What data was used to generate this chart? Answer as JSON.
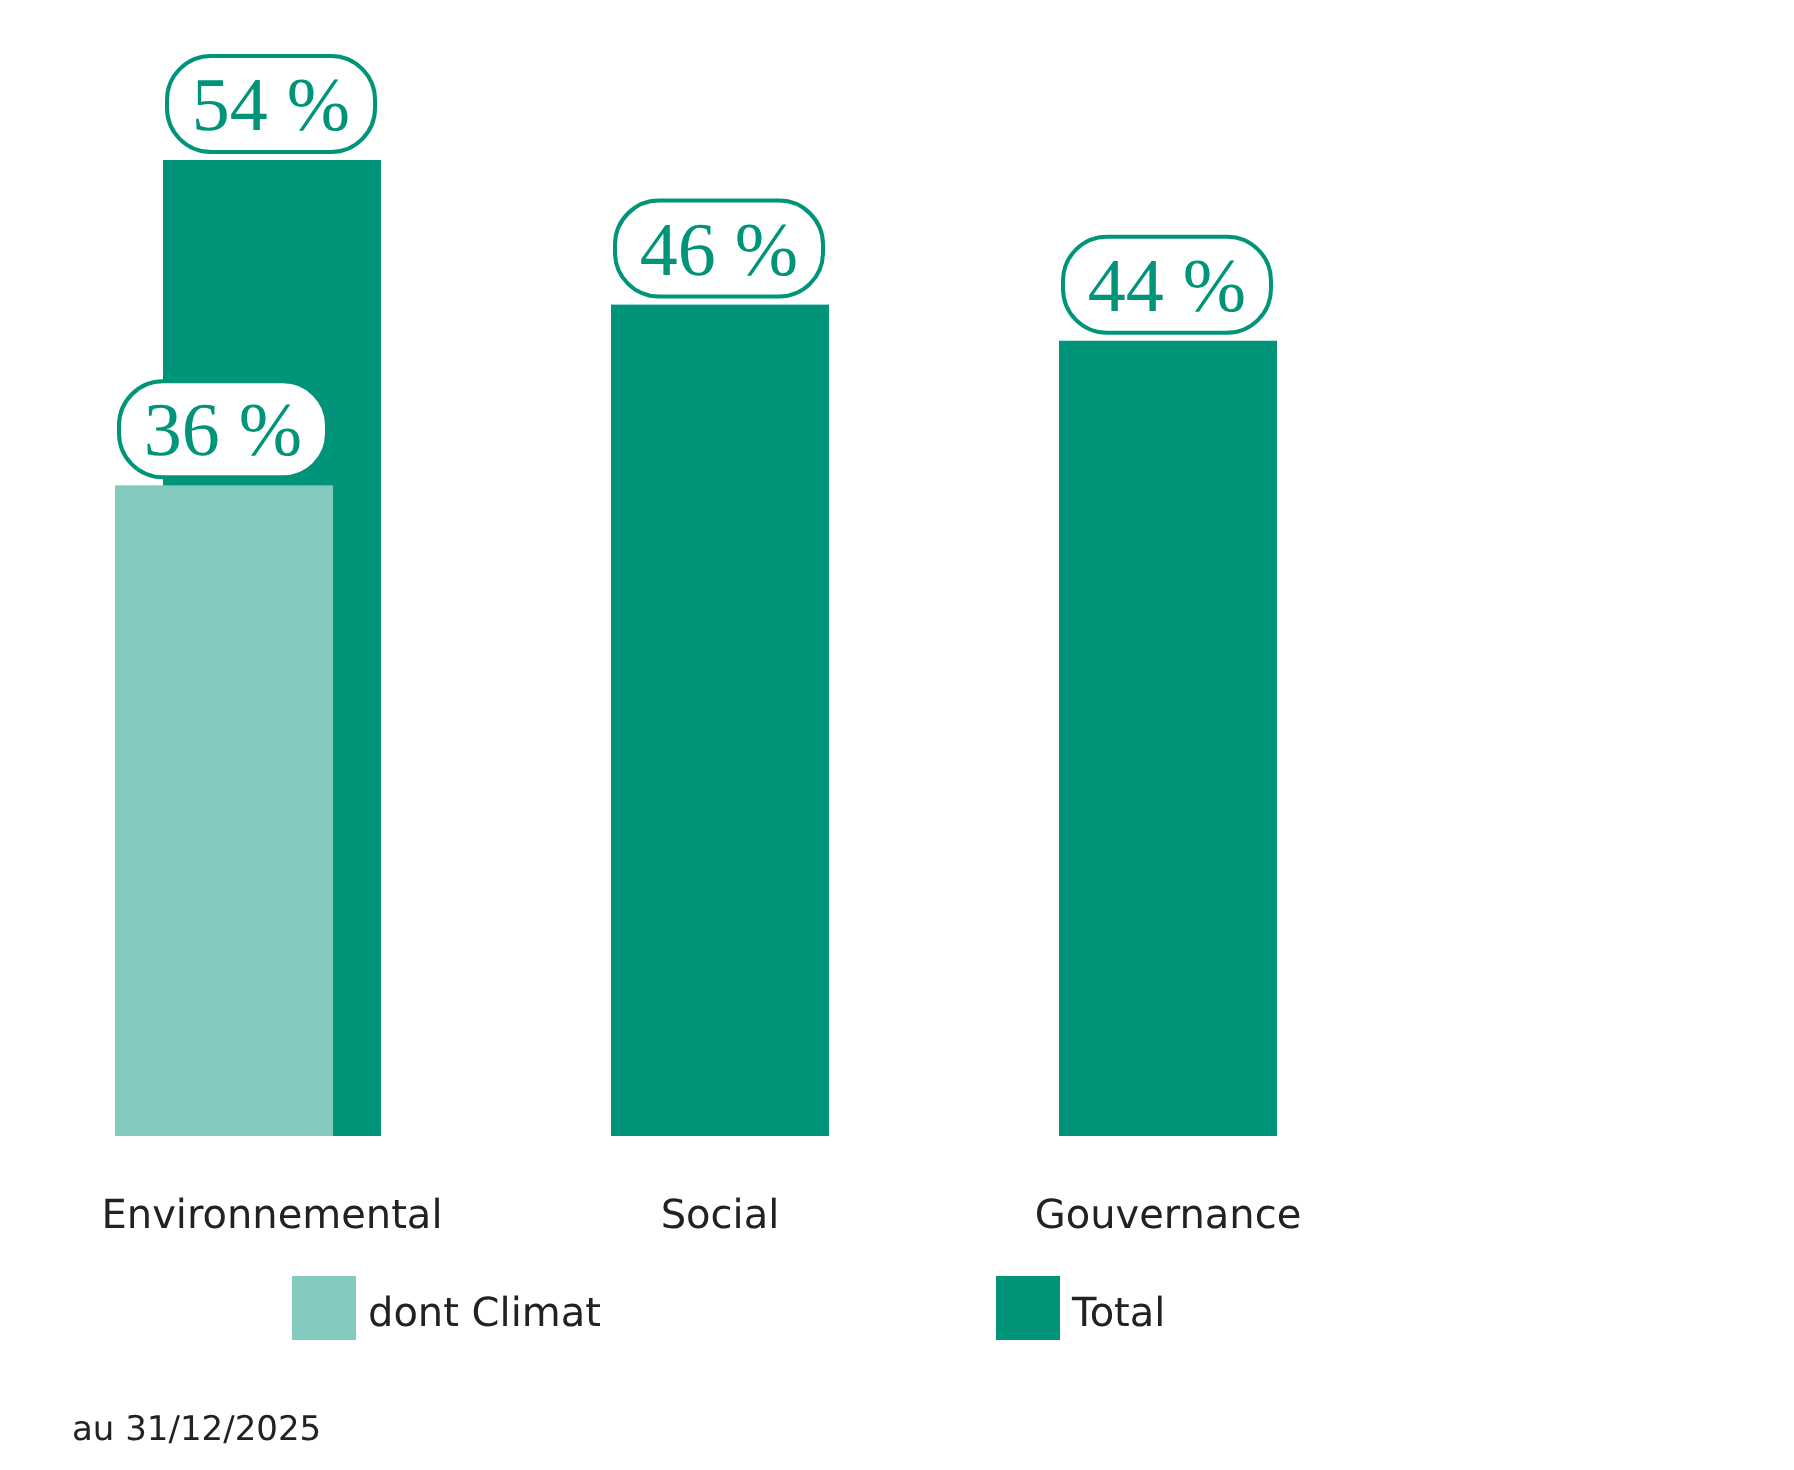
{
  "chart_data": {
    "type": "bar",
    "categories": [
      "Environnemental",
      "Social",
      "Gouvernance"
    ],
    "series": [
      {
        "name": "Total",
        "color": "#009479",
        "values": [
          54,
          46,
          44
        ],
        "value_labels": [
          "54 %",
          "46 %",
          "44 %"
        ]
      },
      {
        "name": "dont Climat",
        "color": "#84c9bd",
        "values": [
          36,
          null,
          null
        ],
        "value_labels": [
          "36 %",
          null,
          null
        ]
      }
    ],
    "legend": "bottom",
    "annotations": [
      "au 31/12/2025"
    ]
  }
}
